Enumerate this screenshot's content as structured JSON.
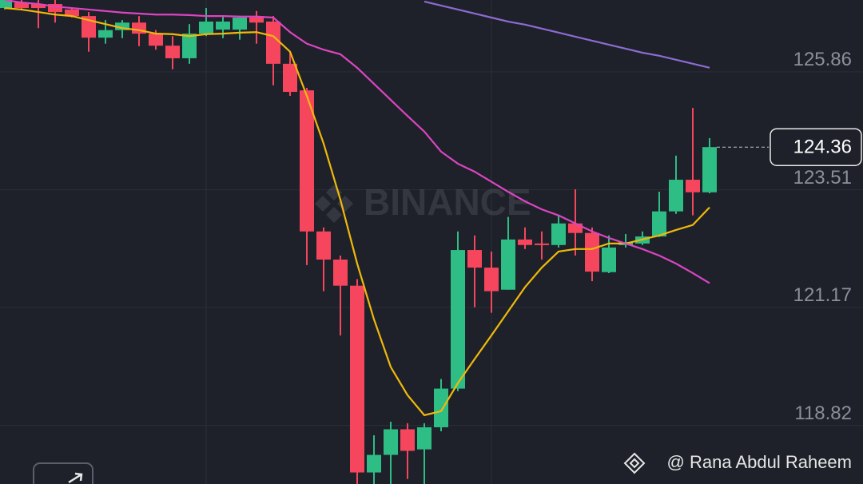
{
  "chart_data": {
    "type": "candlestick",
    "watermark": "BINANCE",
    "credit": "@ Rana Abdul Raheem",
    "ylim": [
      117.65,
      127.29
    ],
    "yticks": [
      125.86,
      123.51,
      121.17,
      118.82
    ],
    "last_price": 124.36,
    "up_color": "#2ebd85",
    "down_color": "#f6465d",
    "open": [
      127.13,
      127.24,
      127.21,
      127.21,
      127.1,
      126.97,
      126.54,
      126.69,
      126.84,
      126.62,
      126.38,
      126.13,
      126.62,
      126.7,
      126.7,
      126.94,
      126.86,
      126.02,
      125.49,
      122.68,
      122.12,
      121.6,
      117.88,
      118.23,
      118.74,
      118.34,
      118.78,
      119.55,
      122.31,
      121.96,
      121.52,
      122.52,
      122.44,
      122.41,
      122.84,
      122.65,
      121.87,
      122.41,
      122.44,
      122.58,
      123.08,
      123.71,
      123.46
    ],
    "high": [
      127.29,
      127.29,
      127.29,
      127.29,
      127.13,
      127.05,
      126.89,
      126.89,
      126.97,
      126.69,
      126.57,
      126.81,
      127.13,
      126.97,
      126.97,
      127.07,
      126.97,
      126.26,
      125.54,
      122.76,
      122.2,
      121.73,
      118.62,
      118.89,
      118.86,
      118.86,
      119.74,
      122.68,
      122.6,
      122.28,
      122.97,
      122.76,
      122.68,
      123.0,
      123.52,
      122.76,
      122.6,
      122.63,
      122.68,
      123.47,
      124.19,
      125.14,
      124.54
    ],
    "low": [
      127.1,
      127.1,
      126.73,
      126.84,
      126.94,
      126.26,
      126.42,
      126.53,
      126.37,
      126.3,
      125.91,
      126.02,
      126.57,
      126.53,
      126.5,
      126.42,
      125.59,
      125.38,
      122.01,
      121.49,
      120.61,
      117.65,
      117.65,
      117.65,
      117.75,
      117.65,
      118.7,
      119.5,
      121.17,
      121.06,
      121.52,
      122.33,
      122.12,
      122.36,
      122.2,
      121.69,
      121.85,
      122.36,
      122.41,
      122.57,
      123.03,
      123.0,
      123.44
    ],
    "close": [
      127.29,
      127.13,
      127.13,
      127.05,
      126.97,
      126.54,
      126.69,
      126.84,
      126.62,
      126.38,
      126.13,
      126.62,
      126.86,
      126.86,
      126.94,
      126.84,
      126.02,
      125.46,
      122.68,
      122.12,
      121.6,
      117.88,
      118.23,
      118.74,
      118.31,
      118.78,
      119.55,
      122.31,
      121.96,
      121.49,
      122.52,
      122.41,
      122.41,
      122.84,
      122.65,
      121.88,
      122.36,
      122.47,
      122.58,
      123.08,
      123.71,
      123.46,
      124.36
    ],
    "series": [
      {
        "color": "#f0b90b",
        "values": [
          127.13,
          127.1,
          127.05,
          127.0,
          126.97,
          126.89,
          126.81,
          126.73,
          126.69,
          126.62,
          126.61,
          126.57,
          126.61,
          126.62,
          126.64,
          126.65,
          126.57,
          126.26,
          125.38,
          124.43,
          123.31,
          122.04,
          120.93,
          119.98,
          119.42,
          119.02,
          119.1,
          119.66,
          120.14,
          120.61,
          121.09,
          121.57,
          121.96,
          122.28,
          122.33,
          122.33,
          122.44,
          122.44,
          122.52,
          122.6,
          122.71,
          122.81,
          123.16
        ]
      },
      {
        "color": "#dc45c2",
        "values": [
          127.29,
          127.24,
          127.21,
          127.16,
          127.13,
          127.1,
          127.07,
          127.04,
          127.02,
          127.0,
          127.0,
          126.99,
          126.97,
          126.97,
          126.96,
          126.96,
          126.94,
          126.65,
          126.42,
          126.3,
          126.21,
          125.94,
          125.62,
          125.3,
          124.98,
          124.67,
          124.27,
          124.03,
          123.87,
          123.67,
          123.47,
          123.28,
          123.12,
          123.0,
          122.84,
          122.68,
          122.55,
          122.44,
          122.33,
          122.2,
          122.04,
          121.85,
          121.65
        ]
      },
      {
        "color": "#8d6bd3",
        "values": [
          null,
          null,
          null,
          null,
          null,
          null,
          null,
          null,
          null,
          null,
          null,
          null,
          null,
          null,
          null,
          null,
          null,
          null,
          null,
          null,
          null,
          null,
          null,
          null,
          null,
          127.26,
          127.18,
          127.1,
          127.02,
          126.94,
          126.86,
          126.8,
          126.72,
          126.64,
          126.56,
          126.48,
          126.4,
          126.32,
          126.24,
          126.18,
          126.1,
          126.02,
          125.94
        ]
      }
    ]
  }
}
